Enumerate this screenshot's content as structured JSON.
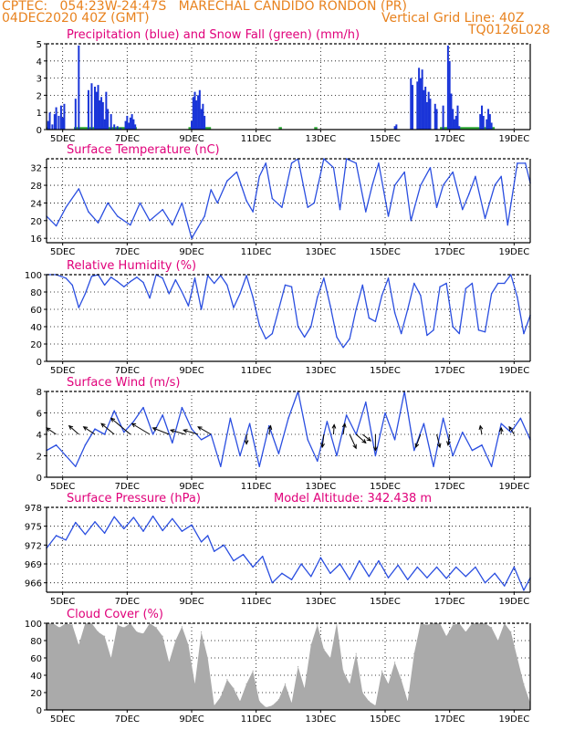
{
  "header": {
    "station": "CPTEC:   054:23W-24:47S   MARECHAL CANDIDO RONDON (PR)",
    "run": "04DEC2020 40Z (GMT)",
    "gridline": "Vertical Grid Line: 40Z",
    "code": "TQ0126L028",
    "color": "#e8821e"
  },
  "colors": {
    "title": "#e0007a",
    "line": "#2a4ee0",
    "precip": "#1a35d8",
    "snow": "#2ea836",
    "cloud": "#aaaaaa",
    "arrow": "#000000"
  },
  "x_ticks": [
    "5DEC",
    "7DEC",
    "9DEC",
    "11DEC",
    "13DEC",
    "15DEC",
    "17DEC",
    "19DEC"
  ],
  "chart_data": [
    {
      "id": "precip",
      "type": "bar",
      "title": "Precipitation (blue) and Snow Fall (green) (mm/h)",
      "ylim": [
        0,
        5
      ],
      "yticks": [
        "0",
        "1",
        "2",
        "3",
        "4",
        "5"
      ],
      "xlim": [
        4,
        19
      ],
      "x": [
        4.05,
        4.1,
        4.18,
        4.25,
        4.3,
        4.38,
        4.45,
        4.5,
        4.55,
        4.9,
        5.0,
        5.3,
        5.4,
        5.5,
        5.55,
        5.6,
        5.65,
        5.7,
        5.75,
        5.8,
        5.85,
        5.9,
        6.0,
        6.1,
        6.2,
        6.3,
        6.45,
        6.5,
        6.55,
        6.6,
        6.65,
        6.7,
        6.75,
        8.5,
        8.55,
        8.6,
        8.65,
        8.7,
        8.75,
        8.8,
        8.85,
        8.9,
        14.8,
        14.85,
        15.3,
        15.35,
        15.5,
        15.55,
        15.6,
        15.65,
        15.7,
        15.75,
        15.8,
        15.85,
        15.9,
        16.05,
        16.1,
        16.3,
        16.45,
        16.5,
        16.55,
        16.6,
        16.65,
        16.7,
        16.75,
        16.8,
        17.45,
        17.5,
        17.55,
        17.65,
        17.7,
        17.75,
        17.8
      ],
      "values": [
        0.5,
        1.0,
        0.3,
        0.9,
        1.3,
        0.8,
        1.4,
        0.7,
        1.5,
        1.8,
        4.9,
        2.3,
        2.7,
        2.5,
        2.2,
        2.6,
        1.7,
        1.9,
        1.6,
        0.6,
        2.2,
        1.2,
        0.9,
        0.3,
        0.2,
        0.1,
        0.5,
        0.8,
        0.4,
        0.7,
        0.9,
        0.6,
        0.3,
        0.5,
        1.9,
        2.2,
        1.7,
        2.0,
        2.3,
        1.2,
        1.5,
        0.8,
        0.2,
        0.3,
        3.0,
        2.6,
        2.8,
        3.6,
        3.0,
        3.5,
        2.3,
        2.5,
        1.6,
        2.2,
        1.8,
        1.5,
        1.2,
        1.4,
        4.9,
        4.0,
        2.1,
        1.2,
        0.6,
        0.8,
        1.4,
        0.2,
        0.9,
        1.4,
        0.8,
        0.6,
        1.2,
        0.9,
        0.4
      ],
      "snow": [
        [
          4,
          4.1
        ],
        [
          4.85,
          6.8
        ],
        [
          8.4,
          9.1
        ],
        [
          11.2,
          11.3
        ],
        [
          12.3,
          12.4
        ],
        [
          16.2,
          17.9
        ]
      ]
    },
    {
      "id": "temp",
      "type": "line",
      "title": "Surface Temperature (nC)",
      "ylim": [
        15,
        34
      ],
      "yticks": [
        "16",
        "20",
        "24",
        "28",
        "32"
      ],
      "xlim": [
        4,
        19
      ],
      "x": [
        4.0,
        4.3,
        4.6,
        5.0,
        5.3,
        5.6,
        5.9,
        6.2,
        6.6,
        6.9,
        7.2,
        7.6,
        7.9,
        8.2,
        8.5,
        8.7,
        8.9,
        9.1,
        9.3,
        9.6,
        9.9,
        10.2,
        10.4,
        10.6,
        10.8,
        11.0,
        11.3,
        11.6,
        11.8,
        12.1,
        12.3,
        12.6,
        12.9,
        13.1,
        13.3,
        13.6,
        13.9,
        14.1,
        14.3,
        14.6,
        14.8,
        15.1,
        15.3,
        15.6,
        15.9,
        16.1,
        16.3,
        16.6,
        16.9,
        17.1,
        17.3,
        17.6,
        17.9,
        18.1,
        18.3,
        18.6,
        18.85,
        19.0
      ],
      "values": [
        21,
        18.8,
        23,
        27.2,
        22,
        19.5,
        24,
        21,
        19,
        24,
        20,
        22.5,
        19,
        24,
        16,
        18.5,
        21,
        27,
        24,
        29,
        31,
        24.5,
        22,
        30,
        33,
        25,
        23,
        33,
        34,
        23,
        24,
        34,
        32,
        22.5,
        34,
        33,
        22,
        28,
        33,
        21,
        28,
        31,
        20,
        28,
        32,
        23,
        28,
        31,
        22.5,
        26,
        30,
        20.5,
        28,
        30,
        19,
        33,
        33,
        28.5
      ]
    },
    {
      "id": "rh",
      "type": "line",
      "title": "Relative Humidity (%)",
      "ylim": [
        0,
        100
      ],
      "yticks": [
        "0",
        "20",
        "40",
        "60",
        "80",
        "100"
      ],
      "xlim": [
        4,
        19
      ],
      "x": [
        4.0,
        4.3,
        4.6,
        4.8,
        5.0,
        5.2,
        5.4,
        5.6,
        5.8,
        6.0,
        6.2,
        6.4,
        6.6,
        6.8,
        7.0,
        7.2,
        7.4,
        7.6,
        7.8,
        8.0,
        8.2,
        8.4,
        8.6,
        8.8,
        9.0,
        9.2,
        9.4,
        9.6,
        9.8,
        10.0,
        10.2,
        10.4,
        10.6,
        10.8,
        11.0,
        11.2,
        11.4,
        11.6,
        11.8,
        12.0,
        12.2,
        12.4,
        12.6,
        12.8,
        13.0,
        13.2,
        13.4,
        13.6,
        13.8,
        14.0,
        14.2,
        14.4,
        14.6,
        14.8,
        15.0,
        15.2,
        15.4,
        15.6,
        15.8,
        16.0,
        16.2,
        16.4,
        16.6,
        16.8,
        17.0,
        17.2,
        17.4,
        17.6,
        17.8,
        18.0,
        18.2,
        18.4,
        18.6,
        18.8,
        19.0
      ],
      "values": [
        100,
        100,
        96,
        88,
        62,
        78,
        98,
        100,
        88,
        97,
        92,
        86,
        92,
        97,
        91,
        73,
        100,
        96,
        78,
        94,
        80,
        64,
        96,
        60,
        99,
        90,
        99,
        88,
        62,
        78,
        99,
        74,
        42,
        26,
        32,
        60,
        88,
        86,
        40,
        28,
        40,
        74,
        96,
        64,
        28,
        16,
        26,
        60,
        88,
        50,
        46,
        76,
        96,
        56,
        32,
        60,
        90,
        76,
        30,
        36,
        86,
        90,
        40,
        32,
        84,
        90,
        36,
        34,
        78,
        90,
        90,
        100,
        74,
        32,
        53
      ]
    },
    {
      "id": "wind",
      "type": "line",
      "title": "Surface Wind (m/s)",
      "ylim": [
        0,
        8
      ],
      "yticks": [
        "0",
        "2",
        "4",
        "6",
        "8"
      ],
      "xlim": [
        4,
        19
      ],
      "x": [
        4.0,
        4.3,
        4.6,
        4.9,
        5.2,
        5.5,
        5.8,
        6.1,
        6.4,
        6.7,
        7.0,
        7.3,
        7.6,
        7.9,
        8.2,
        8.5,
        8.8,
        9.1,
        9.4,
        9.7,
        10.0,
        10.3,
        10.6,
        10.9,
        11.2,
        11.5,
        11.8,
        12.1,
        12.4,
        12.7,
        13.0,
        13.3,
        13.6,
        13.9,
        14.2,
        14.5,
        14.8,
        15.1,
        15.4,
        15.7,
        16.0,
        16.3,
        16.6,
        16.9,
        17.2,
        17.5,
        17.8,
        18.1,
        18.4,
        18.7,
        19.0
      ],
      "values": [
        2.5,
        3.0,
        2.0,
        1.0,
        3.0,
        4.5,
        4.0,
        6.2,
        4.2,
        5.2,
        6.5,
        4.0,
        5.8,
        3.2,
        6.5,
        4.5,
        3.5,
        4.0,
        1.0,
        5.5,
        2.0,
        5.0,
        1.0,
        4.8,
        2.2,
        5.5,
        8.0,
        3.5,
        1.5,
        5.2,
        2.0,
        5.8,
        4.0,
        7.0,
        2.0,
        6.0,
        3.5,
        8.0,
        2.5,
        5.0,
        1.0,
        5.5,
        2.0,
        4.2,
        2.5,
        3.0,
        1.0,
        5.0,
        4.2,
        5.5,
        3.5
      ],
      "arrows_x": [
        4.3,
        5.0,
        5.5,
        6.1,
        6.6,
        7.2,
        7.8,
        8.3,
        8.7,
        9.1,
        10.2,
        10.9,
        12.6,
        12.9,
        13.2,
        13.4,
        13.6,
        13.8,
        14.2,
        15.6,
        16.1,
        16.5,
        17.5,
        18.1,
        18.5
      ],
      "arrows_dx": [
        -0.3,
        -0.3,
        -0.35,
        -0.4,
        -0.6,
        -0.55,
        -0.5,
        -0.45,
        -0.45,
        -0.4,
        0,
        0.05,
        -0.05,
        0.02,
        0.05,
        0.2,
        0.3,
        0.25,
        0.0,
        -0.15,
        0.1,
        -0.05,
        -0.05,
        0.0,
        -0.15
      ],
      "arrows_dy": [
        0.6,
        0.8,
        0.7,
        1.0,
        1.5,
        1.0,
        0.6,
        0.4,
        0.4,
        0.7,
        -0.9,
        0.8,
        -1.2,
        0.9,
        1.0,
        -1.3,
        -0.8,
        -0.6,
        -1.5,
        -1.2,
        -1.2,
        -1.0,
        0.8,
        0.6,
        0.7
      ]
    },
    {
      "id": "pres",
      "type": "line",
      "title": "Surface Pressure (hPa)",
      "subtitle": "Model Altitude: 342.438 m",
      "ylim": [
        964.5,
        978
      ],
      "yticks": [
        "966",
        "969",
        "972",
        "975",
        "978"
      ],
      "xlim": [
        4,
        19
      ],
      "x": [
        4.0,
        4.3,
        4.6,
        4.9,
        5.2,
        5.5,
        5.8,
        6.1,
        6.4,
        6.7,
        7.0,
        7.3,
        7.6,
        7.9,
        8.2,
        8.5,
        8.8,
        9.0,
        9.2,
        9.5,
        9.8,
        10.1,
        10.4,
        10.7,
        11.0,
        11.3,
        11.6,
        11.9,
        12.2,
        12.5,
        12.8,
        13.1,
        13.4,
        13.7,
        14.0,
        14.3,
        14.6,
        14.9,
        15.2,
        15.5,
        15.8,
        16.1,
        16.4,
        16.7,
        17.0,
        17.3,
        17.6,
        17.9,
        18.2,
        18.5,
        18.8,
        19.0
      ],
      "values": [
        971.5,
        973.5,
        972.8,
        975.6,
        973.7,
        975.7,
        973.9,
        976.5,
        974.6,
        976.4,
        974.2,
        976.6,
        974.3,
        976.2,
        974.2,
        975.2,
        972.5,
        973.5,
        971.0,
        972.0,
        969.5,
        970.5,
        968.5,
        970.2,
        966.0,
        967.5,
        966.5,
        969.0,
        967.0,
        970.0,
        967.5,
        969.0,
        966.5,
        969.5,
        967.0,
        969.5,
        966.8,
        968.8,
        966.5,
        968.5,
        966.8,
        968.5,
        966.7,
        968.5,
        967.0,
        968.5,
        966.0,
        967.5,
        965.5,
        968.5,
        964.8,
        966.8
      ]
    },
    {
      "id": "cloud",
      "type": "area",
      "title": "Cloud Cover (%)",
      "ylim": [
        0,
        100
      ],
      "yticks": [
        "0",
        "20",
        "40",
        "60",
        "80",
        "100"
      ],
      "xlim": [
        4,
        19
      ],
      "x": [
        4.0,
        4.2,
        4.4,
        4.6,
        4.8,
        5.0,
        5.2,
        5.4,
        5.6,
        5.8,
        6.0,
        6.2,
        6.4,
        6.6,
        6.8,
        7.0,
        7.2,
        7.4,
        7.6,
        7.8,
        8.0,
        8.2,
        8.4,
        8.6,
        8.8,
        9.0,
        9.2,
        9.4,
        9.6,
        9.8,
        10.0,
        10.2,
        10.4,
        10.6,
        10.8,
        11.0,
        11.2,
        11.4,
        11.6,
        11.8,
        12.0,
        12.2,
        12.4,
        12.6,
        12.8,
        13.0,
        13.2,
        13.4,
        13.6,
        13.8,
        14.0,
        14.2,
        14.4,
        14.6,
        14.8,
        15.0,
        15.2,
        15.4,
        15.6,
        15.8,
        16.0,
        16.2,
        16.4,
        16.6,
        16.8,
        17.0,
        17.2,
        17.4,
        17.6,
        17.8,
        18.0,
        18.2,
        18.4,
        18.6,
        18.8,
        19.0
      ],
      "values": [
        100,
        100,
        95,
        100,
        98,
        75,
        100,
        100,
        90,
        85,
        60,
        98,
        95,
        100,
        90,
        88,
        100,
        95,
        85,
        55,
        80,
        96,
        75,
        30,
        90,
        60,
        5,
        15,
        35,
        25,
        10,
        30,
        45,
        10,
        3,
        5,
        12,
        30,
        8,
        50,
        25,
        75,
        98,
        70,
        60,
        100,
        45,
        30,
        65,
        20,
        10,
        5,
        45,
        30,
        55,
        35,
        10,
        65,
        100,
        98,
        100,
        100,
        85,
        98,
        100,
        90,
        100,
        100,
        100,
        95,
        80,
        100,
        90,
        60,
        30,
        8
      ]
    }
  ]
}
